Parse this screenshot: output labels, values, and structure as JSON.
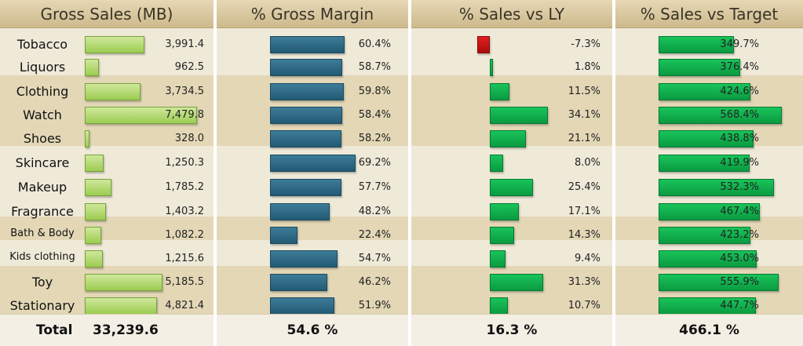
{
  "header": {
    "gross_sales": "Gross Sales (MB)",
    "gross_margin": "% Gross Margin",
    "sales_vs_ly": "% Sales vs LY",
    "sales_vs_target": "% Sales vs Target"
  },
  "footer": {
    "total_label": "Total",
    "gross_sales_total": "33,239.6",
    "gross_margin_total": "54.6 %",
    "sales_vs_ly_total": "16.3 %",
    "sales_vs_target_total": "466.1 %"
  },
  "colors": {
    "band_dark": "#e3d7b6",
    "band_light": "#efe9d8",
    "header": "#d8c69c",
    "gross_sales_bar": "#a8d562",
    "gross_margin_bar": "#2a6682",
    "positive_bar": "#10b04c",
    "negative_bar": "#c41010"
  },
  "chart_data": [
    {
      "type": "bar",
      "title": "Gross Sales (MB)",
      "categories": [
        "Tobacco",
        "Liquors",
        "Clothing",
        "Watch",
        "Shoes",
        "Skincare",
        "Makeup",
        "Fragrance",
        "Bath & Body",
        "Kids clothing",
        "Toy",
        "Stationary"
      ],
      "values": [
        3991.4,
        962.5,
        3734.5,
        7479.8,
        328.0,
        1250.3,
        1785.2,
        1403.2,
        1082.2,
        1215.6,
        5185.5,
        4821.4
      ],
      "labels": [
        "3,991.4",
        "962.5",
        "3,734.5",
        "7,479.8",
        "328.0",
        "1,250.3",
        "1,785.2",
        "1,403.2",
        "1,082.2",
        "1,215.6",
        "5,185.5",
        "4,821.4"
      ],
      "total": "33,239.6",
      "xlim": [
        0,
        7600
      ]
    },
    {
      "type": "bar",
      "title": "% Gross Margin",
      "categories": [
        "Tobacco",
        "Liquors",
        "Clothing",
        "Watch",
        "Shoes",
        "Skincare",
        "Makeup",
        "Fragrance",
        "Bath & Body",
        "Kids clothing",
        "Toy",
        "Stationary"
      ],
      "values": [
        60.4,
        58.7,
        59.8,
        58.4,
        58.2,
        69.2,
        57.7,
        48.2,
        22.4,
        54.7,
        46.2,
        51.9
      ],
      "labels": [
        "60.4%",
        "58.7%",
        "59.8%",
        "58.4%",
        "58.2%",
        "69.2%",
        "57.7%",
        "48.2%",
        "22.4%",
        "54.7%",
        "46.2%",
        "51.9%"
      ],
      "total": "54.6 %",
      "xlim": [
        0,
        70
      ]
    },
    {
      "type": "bar",
      "title": "% Sales vs LY",
      "categories": [
        "Tobacco",
        "Liquors",
        "Clothing",
        "Watch",
        "Shoes",
        "Skincare",
        "Makeup",
        "Fragrance",
        "Bath & Body",
        "Kids clothing",
        "Toy",
        "Stationary"
      ],
      "values": [
        -7.3,
        1.8,
        11.5,
        34.1,
        21.1,
        8.0,
        25.4,
        17.1,
        14.3,
        9.4,
        31.3,
        10.7
      ],
      "labels": [
        "-7.3%",
        "1.8%",
        "11.5%",
        "34.1%",
        "21.1%",
        "8.0%",
        "25.4%",
        "17.1%",
        "14.3%",
        "9.4%",
        "31.3%",
        "10.7%"
      ],
      "total": "16.3 %",
      "xlim": [
        -7.5,
        35
      ]
    },
    {
      "type": "bar",
      "title": "% Sales vs Target",
      "categories": [
        "Tobacco",
        "Liquors",
        "Clothing",
        "Watch",
        "Shoes",
        "Skincare",
        "Makeup",
        "Fragrance",
        "Bath & Body",
        "Kids clothing",
        "Toy",
        "Stationary"
      ],
      "values": [
        349.7,
        376.4,
        424.6,
        568.4,
        438.8,
        419.9,
        532.3,
        467.4,
        423.2,
        453.0,
        555.9,
        447.7
      ],
      "labels": [
        "349.7%",
        "376.4%",
        "424.6%",
        "568.4%",
        "438.8%",
        "419.9%",
        "532.3%",
        "467.4%",
        "423.2%",
        "453.0%",
        "555.9%",
        "447.7%"
      ],
      "total": "466.1 %",
      "xlim": [
        0,
        580
      ]
    }
  ]
}
